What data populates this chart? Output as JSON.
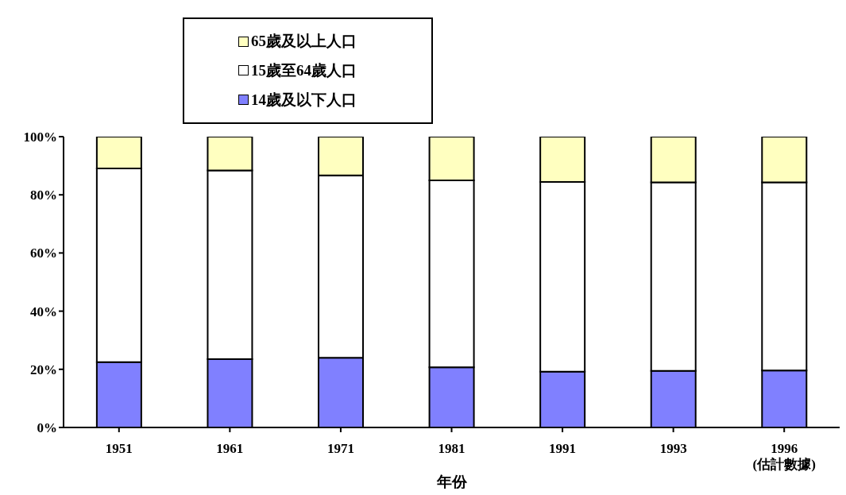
{
  "chart_data": {
    "type": "bar",
    "stacked": true,
    "xlabel": "年份",
    "legend": "top",
    "grid": false,
    "categories": [
      "1951",
      "1961",
      "1971",
      "1981",
      "1991",
      "1993",
      "1996\n(估計數據)"
    ],
    "series": [
      {
        "name": "14歲及以下人口",
        "color": "#8080ff",
        "values": [
          22.5,
          23.5,
          24.0,
          20.7,
          19.2,
          19.5,
          19.6
        ]
      },
      {
        "name": "15歲至64歲人口",
        "color": "#ffffff",
        "values": [
          66.6,
          64.9,
          62.7,
          64.3,
          65.2,
          64.8,
          64.7
        ]
      },
      {
        "name": "65歲及以上人口",
        "color": "#ffffc0",
        "values": [
          10.9,
          11.6,
          13.3,
          15.0,
          15.6,
          15.7,
          15.7
        ]
      }
    ],
    "ylim": [
      0,
      100
    ],
    "yticks": [
      {
        "value": 0,
        "label": "0%"
      },
      {
        "value": 20,
        "label": "20%"
      },
      {
        "value": 40,
        "label": "40%"
      },
      {
        "value": 60,
        "label": "60%"
      },
      {
        "value": 80,
        "label": "80%"
      },
      {
        "value": 100,
        "label": "100%"
      }
    ]
  }
}
